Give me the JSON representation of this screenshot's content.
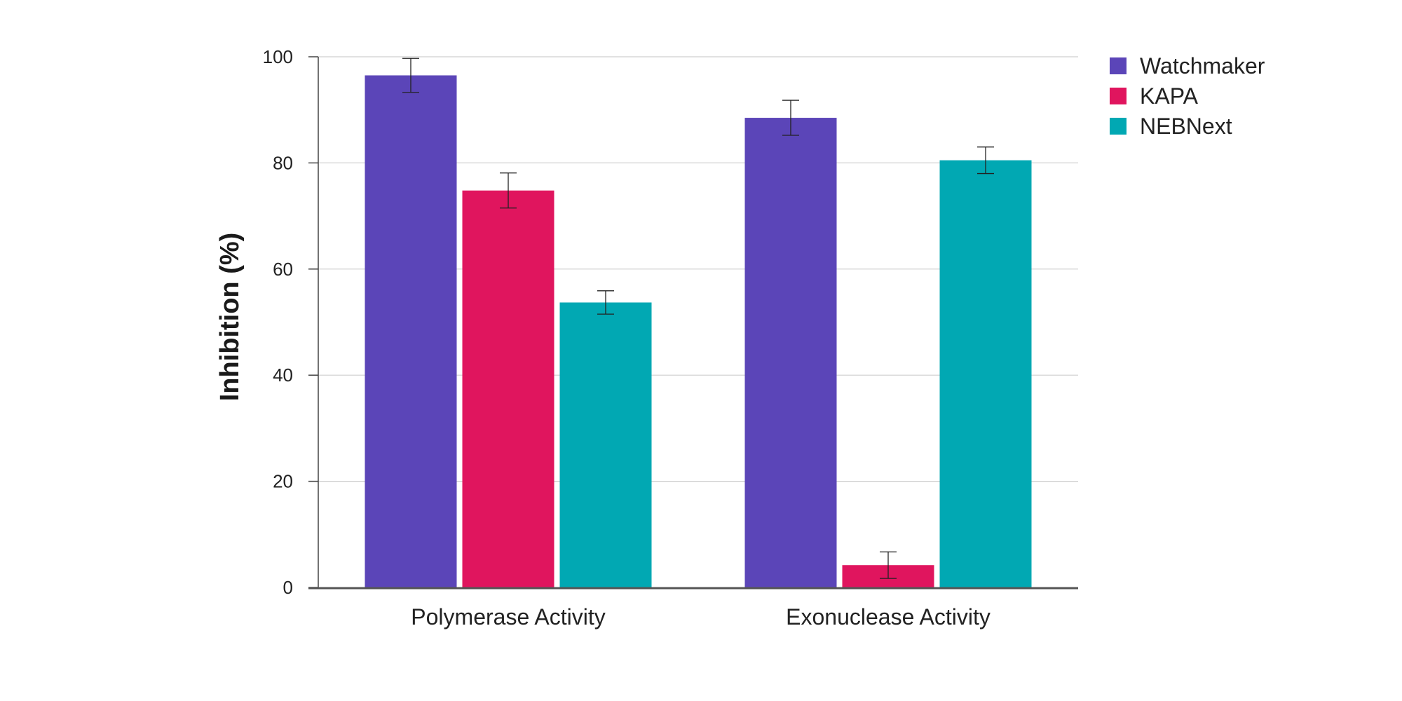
{
  "chart_data": {
    "type": "bar",
    "title": "",
    "xlabel": "",
    "ylabel": "Inhibition (%)",
    "categories": [
      "Polymerase Activity",
      "Exonuclease Activity"
    ],
    "series": [
      {
        "name": "Watchmaker",
        "color": "#5b45b8",
        "values": [
          96.5,
          88.5
        ],
        "errors": [
          3.2,
          3.3
        ]
      },
      {
        "name": "KAPA",
        "color": "#e0155e",
        "values": [
          74.8,
          4.2
        ],
        "errors": [
          3.3,
          2.5
        ]
      },
      {
        "name": "NEBNext",
        "color": "#01a8b3",
        "values": [
          53.7,
          80.5
        ],
        "errors": [
          2.2,
          2.5
        ]
      }
    ],
    "ylim": [
      0,
      100
    ],
    "yticks": [
      0,
      20,
      40,
      60,
      80,
      100
    ],
    "grid": true,
    "legend_position": "top-right"
  }
}
